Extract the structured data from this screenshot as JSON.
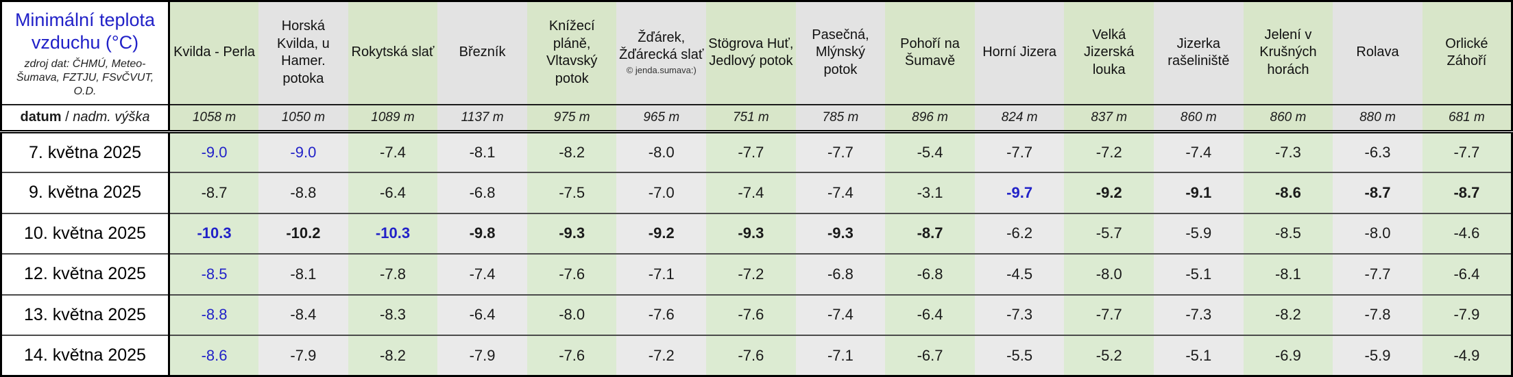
{
  "chart_data": {
    "type": "table",
    "title": "Minimální teplota vzduchu (°C)",
    "source_note": "zdroj dat: ČHMÚ, Meteo-Šumava, FZTJU, FSvČVUT, O.D.",
    "corner": {
      "left": "datum",
      "sep": " / ",
      "right": "nadm. výška"
    },
    "altitude_unit": "m",
    "stations": [
      {
        "name": "Kvilda - Perla",
        "altitude_m": 1058
      },
      {
        "name": "Horská Kvilda, u Hamer. potoka",
        "altitude_m": 1050
      },
      {
        "name": "Rokytská slať",
        "altitude_m": 1089
      },
      {
        "name": "Březník",
        "altitude_m": 1137
      },
      {
        "name": "Knížecí pláně, Vltavský potok",
        "altitude_m": 975
      },
      {
        "name": "Žďárek, Žďárecká slať",
        "note": "© jenda.sumava:)",
        "altitude_m": 965
      },
      {
        "name": "Stögrova Huť, Jedlový potok",
        "altitude_m": 751
      },
      {
        "name": "Pasečná, Mlýnský potok",
        "altitude_m": 785
      },
      {
        "name": "Pohoří na Šumavě",
        "altitude_m": 896
      },
      {
        "name": "Horní Jizera",
        "altitude_m": 824
      },
      {
        "name": "Velká Jizerská louka",
        "altitude_m": 837
      },
      {
        "name": "Jizerka rašeliniště",
        "altitude_m": 860
      },
      {
        "name": "Jelení v Krušných horách",
        "altitude_m": 860
      },
      {
        "name": "Rolava",
        "altitude_m": 880
      },
      {
        "name": "Orlické Záhoří",
        "altitude_m": 681
      }
    ],
    "rows": [
      {
        "date": "7. května 2025",
        "values": [
          -9.0,
          -9.0,
          -7.4,
          -8.1,
          -8.2,
          -8.0,
          -7.7,
          -7.7,
          -5.4,
          -7.7,
          -7.2,
          -7.4,
          -7.3,
          -6.3,
          -7.7
        ],
        "styles": [
          "blue",
          "blue",
          "",
          "",
          "",
          "",
          "",
          "",
          "",
          "",
          "",
          "",
          "",
          "",
          ""
        ]
      },
      {
        "date": "9. května 2025",
        "values": [
          -8.7,
          -8.8,
          -6.4,
          -6.8,
          -7.5,
          -7.0,
          -7.4,
          -7.4,
          -3.1,
          -9.7,
          -9.2,
          -9.1,
          -8.6,
          -8.7,
          -8.7
        ],
        "styles": [
          "",
          "",
          "",
          "",
          "",
          "",
          "",
          "",
          "",
          "blue bold",
          "bold",
          "bold",
          "bold",
          "bold",
          "bold"
        ]
      },
      {
        "date": "10. května 2025",
        "values": [
          -10.3,
          -10.2,
          -10.3,
          -9.8,
          -9.3,
          -9.2,
          -9.3,
          -9.3,
          -8.7,
          -6.2,
          -5.7,
          -5.9,
          -8.5,
          -8.0,
          -4.6
        ],
        "styles": [
          "blue bold",
          "bold",
          "blue bold",
          "bold",
          "bold",
          "bold",
          "bold",
          "bold",
          "bold",
          "",
          "",
          "",
          "",
          "",
          ""
        ]
      },
      {
        "date": "12. května 2025",
        "values": [
          -8.5,
          -8.1,
          -7.8,
          -7.4,
          -7.6,
          -7.1,
          -7.2,
          -6.8,
          -6.8,
          -4.5,
          -8.0,
          -5.1,
          -8.1,
          -7.7,
          -6.4
        ],
        "styles": [
          "blue",
          "",
          "",
          "",
          "",
          "",
          "",
          "",
          "",
          "",
          "",
          "",
          "",
          "",
          ""
        ]
      },
      {
        "date": "13. května 2025",
        "values": [
          -8.8,
          -8.4,
          -8.3,
          -6.4,
          -8.0,
          -7.6,
          -7.6,
          -7.4,
          -6.4,
          -7.3,
          -7.7,
          -7.3,
          -8.2,
          -7.8,
          -7.9
        ],
        "styles": [
          "blue",
          "",
          "",
          "",
          "",
          "",
          "",
          "",
          "",
          "",
          "",
          "",
          "",
          "",
          ""
        ]
      },
      {
        "date": "14. května 2025",
        "values": [
          -8.6,
          -7.9,
          -8.2,
          -7.9,
          -7.6,
          -7.2,
          -7.6,
          -7.1,
          -6.7,
          -5.5,
          -5.2,
          -5.1,
          -6.9,
          -5.9,
          -4.9
        ],
        "styles": [
          "blue",
          "",
          "",
          "",
          "",
          "",
          "",
          "",
          "",
          "",
          "",
          "",
          "",
          "",
          ""
        ]
      }
    ],
    "style_legend": {
      "blue": "lowest temperature of that date across all stations",
      "bold": "lowest temperature of that station across all dates"
    },
    "colors": {
      "accent_blue": "#2121c8",
      "header_green": "#d8e6c9",
      "header_gray": "#e3e3e3",
      "body_green": "#dcebd2",
      "body_gray": "#eaeaea"
    }
  }
}
